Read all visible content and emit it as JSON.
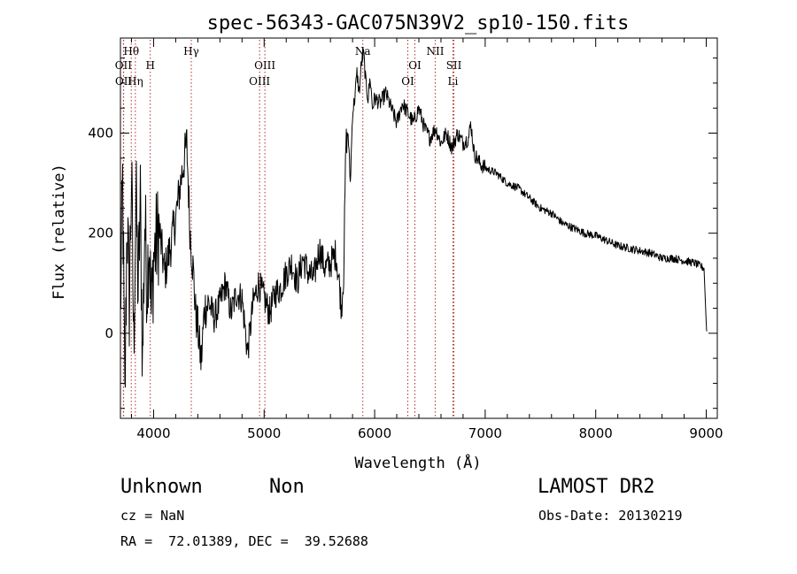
{
  "chart_data": {
    "type": "line",
    "title": "spec-56343-GAC075N39V2_sp10-150.fits",
    "xlabel": "Wavelength (Å)",
    "ylabel": "Flux (relative)",
    "xlim": [
      3700,
      9100
    ],
    "ylim": [
      -170,
      590
    ],
    "xticks": [
      4000,
      5000,
      6000,
      7000,
      8000,
      9000
    ],
    "yticks": [
      0,
      200,
      400
    ],
    "grid": false,
    "series": [
      {
        "x": [
          3700,
          3720,
          3740,
          3760,
          3780,
          3800,
          3820,
          3840,
          3860,
          3880,
          3900,
          3920,
          3940,
          3960,
          3980,
          4000,
          4050,
          4100,
          4150,
          4200,
          4250,
          4300,
          4330,
          4360,
          4380,
          4400,
          4430,
          4460,
          4500,
          4550,
          4600,
          4650,
          4700,
          4750,
          4800,
          4850,
          4900,
          4950,
          5000,
          5050,
          5100,
          5150,
          5200,
          5250,
          5300,
          5350,
          5400,
          5450,
          5500,
          5550,
          5600,
          5650,
          5680,
          5700,
          5720,
          5740,
          5760,
          5780,
          5800,
          5820,
          5840,
          5860,
          5880,
          5900,
          5920,
          5940,
          5960,
          5980,
          6000,
          6050,
          6100,
          6150,
          6200,
          6250,
          6300,
          6350,
          6400,
          6450,
          6500,
          6550,
          6600,
          6650,
          6700,
          6750,
          6800,
          6850,
          6870,
          6900,
          6950,
          7000,
          7100,
          7200,
          7300,
          7400,
          7500,
          7600,
          7700,
          7800,
          7900,
          8000,
          8100,
          8200,
          8300,
          8400,
          8500,
          8600,
          8700,
          8800,
          8900,
          8980,
          9000,
          9005
        ],
        "y": [
          40,
          300,
          -150,
          240,
          60,
          320,
          -30,
          280,
          80,
          260,
          -60,
          230,
          100,
          200,
          30,
          150,
          210,
          120,
          170,
          230,
          310,
          380,
          200,
          120,
          40,
          10,
          -60,
          50,
          60,
          30,
          60,
          100,
          40,
          80,
          70,
          -40,
          60,
          100,
          70,
          40,
          80,
          90,
          120,
          140,
          100,
          150,
          120,
          110,
          170,
          130,
          140,
          160,
          100,
          50,
          120,
          380,
          400,
          300,
          440,
          470,
          520,
          480,
          540,
          560,
          500,
          470,
          510,
          450,
          470,
          460,
          480,
          450,
          420,
          460,
          440,
          420,
          450,
          410,
          390,
          410,
          380,
          400,
          370,
          400,
          380,
          390,
          420,
          360,
          340,
          330,
          320,
          300,
          290,
          270,
          250,
          240,
          220,
          210,
          200,
          195,
          185,
          175,
          170,
          165,
          160,
          150,
          150,
          145,
          140,
          130,
          20,
          0
        ]
      }
    ],
    "lines": [
      {
        "name": "Hθ",
        "x": 3798,
        "row": 1
      },
      {
        "name": "OII",
        "x": 3727,
        "row": 2
      },
      {
        "name": "H",
        "x": 3970,
        "row": 2
      },
      {
        "name": "OII",
        "x": 3729,
        "row": 3
      },
      {
        "name": "Hη",
        "x": 3835,
        "row": 3
      },
      {
        "name": "Hγ",
        "x": 4341,
        "row": 1
      },
      {
        "name": "OIII",
        "x": 5007,
        "row": 2
      },
      {
        "name": "OIII",
        "x": 4959,
        "row": 3
      },
      {
        "name": "Na",
        "x": 5893,
        "row": 1
      },
      {
        "name": "OI",
        "x": 6364,
        "row": 2
      },
      {
        "name": "OI",
        "x": 6300,
        "row": 3
      },
      {
        "name": "NII",
        "x": 6548,
        "row": 1
      },
      {
        "name": "SII",
        "x": 6717,
        "row": 2
      },
      {
        "name": "Li",
        "x": 6708,
        "row": 3
      }
    ]
  },
  "info": {
    "class": "Unknown",
    "subclass": "Non",
    "survey": "LAMOST DR2",
    "cz": "cz = NaN",
    "obs_date": "Obs-Date: 20130219",
    "radec": "RA =  72.01389, DEC =  39.52688"
  }
}
